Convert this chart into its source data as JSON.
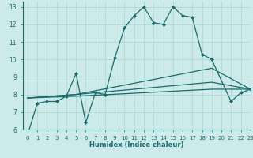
{
  "xlabel": "Humidex (Indice chaleur)",
  "xlim": [
    -0.5,
    23
  ],
  "ylim": [
    6,
    13.3
  ],
  "yticks": [
    6,
    7,
    8,
    9,
    10,
    11,
    12,
    13
  ],
  "xticks": [
    0,
    1,
    2,
    3,
    4,
    5,
    6,
    7,
    8,
    9,
    10,
    11,
    12,
    13,
    14,
    15,
    16,
    17,
    18,
    19,
    20,
    21,
    22,
    23
  ],
  "bg_color": "#cdeaea",
  "grid_color": "#b0d8d8",
  "line_color": "#1a6b6b",
  "lines": [
    {
      "x": [
        0,
        1,
        2,
        3,
        4,
        5,
        6,
        7,
        8,
        9,
        10,
        11,
        12,
        13,
        14,
        15,
        16,
        17,
        18,
        19,
        21,
        22,
        23
      ],
      "y": [
        5.7,
        7.5,
        7.6,
        7.6,
        7.9,
        9.2,
        6.4,
        8.1,
        8.0,
        10.1,
        11.8,
        12.5,
        13.0,
        12.1,
        12.0,
        13.0,
        12.5,
        12.4,
        10.3,
        10.0,
        7.6,
        8.1,
        8.3
      ],
      "marker": true
    },
    {
      "x": [
        0,
        5,
        19,
        23
      ],
      "y": [
        7.8,
        8.0,
        9.5,
        8.3
      ],
      "marker": false
    },
    {
      "x": [
        0,
        5,
        19,
        23
      ],
      "y": [
        7.8,
        8.0,
        8.7,
        8.3
      ],
      "marker": false
    },
    {
      "x": [
        0,
        5,
        19,
        23
      ],
      "y": [
        7.8,
        7.9,
        8.3,
        8.3
      ],
      "marker": false
    }
  ]
}
